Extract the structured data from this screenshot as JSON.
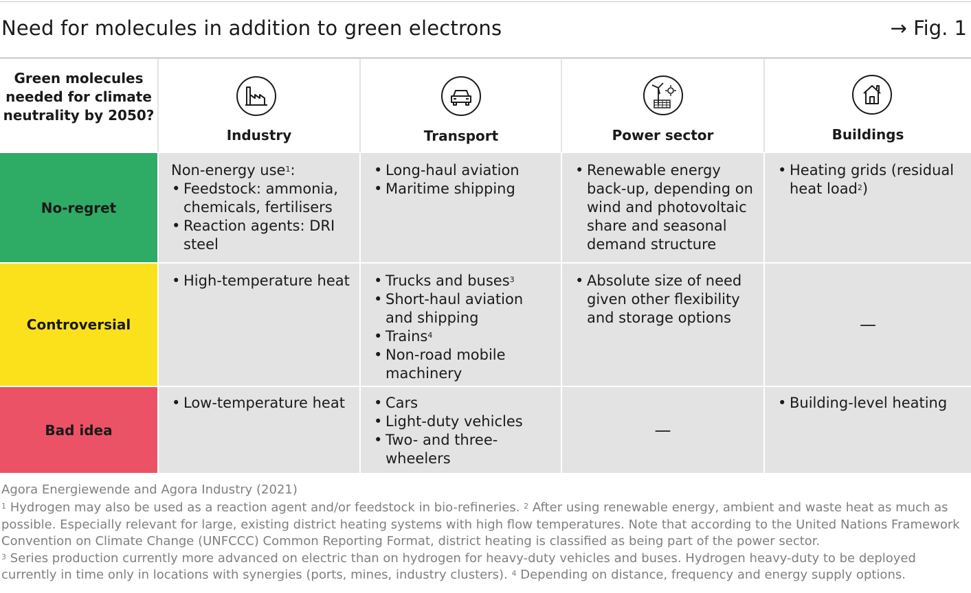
{
  "title": "Need for molecules in addition to green electrons",
  "fig_ref": "→ Fig. 1",
  "question": "Green molecules needed for climate neutrality by 2050?",
  "columns": [
    {
      "label": "Industry",
      "icon": "factory-icon"
    },
    {
      "label": "Transport",
      "icon": "car-icon"
    },
    {
      "label": "Power sector",
      "icon": "wind-solar-icon"
    },
    {
      "label": "Buildings",
      "icon": "house-icon"
    }
  ],
  "rows": [
    {
      "label": "No-regret",
      "color": "#2eab64"
    },
    {
      "label": "Controversial",
      "color": "#fbe11b"
    },
    {
      "label": "Bad idea",
      "color": "#eb5265"
    }
  ],
  "cells": {
    "noregret_industry_intro": "Non-energy use",
    "noregret_industry_intro_sup": "1",
    "noregret_industry_colon": ":",
    "noregret_industry": [
      "Feedstock: ammonia, chemicals, fertilisers",
      "Reaction agents: DRI steel"
    ],
    "noregret_transport": [
      "Long-haul aviation",
      "Maritime shipping"
    ],
    "noregret_power": [
      "Renewable energy back-up, depending on wind and photovoltaic share and seasonal demand structure"
    ],
    "noregret_buildings_text": "Heating grids (residual heat load",
    "noregret_buildings_sup": "2",
    "noregret_buildings_end": ")",
    "controversial_industry": [
      "High-temperature heat"
    ],
    "controversial_transport_1": "Trucks and buses",
    "controversial_transport_1_sup": "3",
    "controversial_transport_2": "Short-haul aviation and shipping",
    "controversial_transport_3": "Trains",
    "controversial_transport_3_sup": "4",
    "controversial_transport_4": "Non-road mobile machinery",
    "controversial_power": [
      "Absolute size of need given other flexibility and storage options"
    ],
    "controversial_buildings": "—",
    "bad_industry": [
      "Low-temperature heat"
    ],
    "bad_transport": [
      "Cars",
      "Light-duty vehicles",
      "Two- and three-wheelers"
    ],
    "bad_power": "—",
    "bad_buildings": [
      "Building-level heating"
    ]
  },
  "source": "Agora Energiewende and Agora Industry (2021)",
  "footnote_line1_sup1": "1",
  "footnote_line1_a": " Hydrogen may also be used as a reaction agent and/or feedstock in bio-refineries. ",
  "footnote_line1_sup2": "2",
  "footnote_line1_b": " After using renewable energy, ambient and waste heat as much as possible. Especially relevant for large, existing district heating systems with high flow temperatures. Note that according to the United Nations Framework Convention on Climate Change (UNFCCC) Common Reporting Format, district heating is classified as being part of the power sector.",
  "footnote_line2_sup3": "3",
  "footnote_line2_a": " Series production currently more advanced on electric than on hydrogen for heavy-duty vehicles and buses. Hydrogen heavy-duty to be deployed currently in time only in locations with synergies (ports, mines, industry clusters). ",
  "footnote_line2_sup4": "4",
  "footnote_line2_b": " Depending on distance, frequency and energy supply options."
}
